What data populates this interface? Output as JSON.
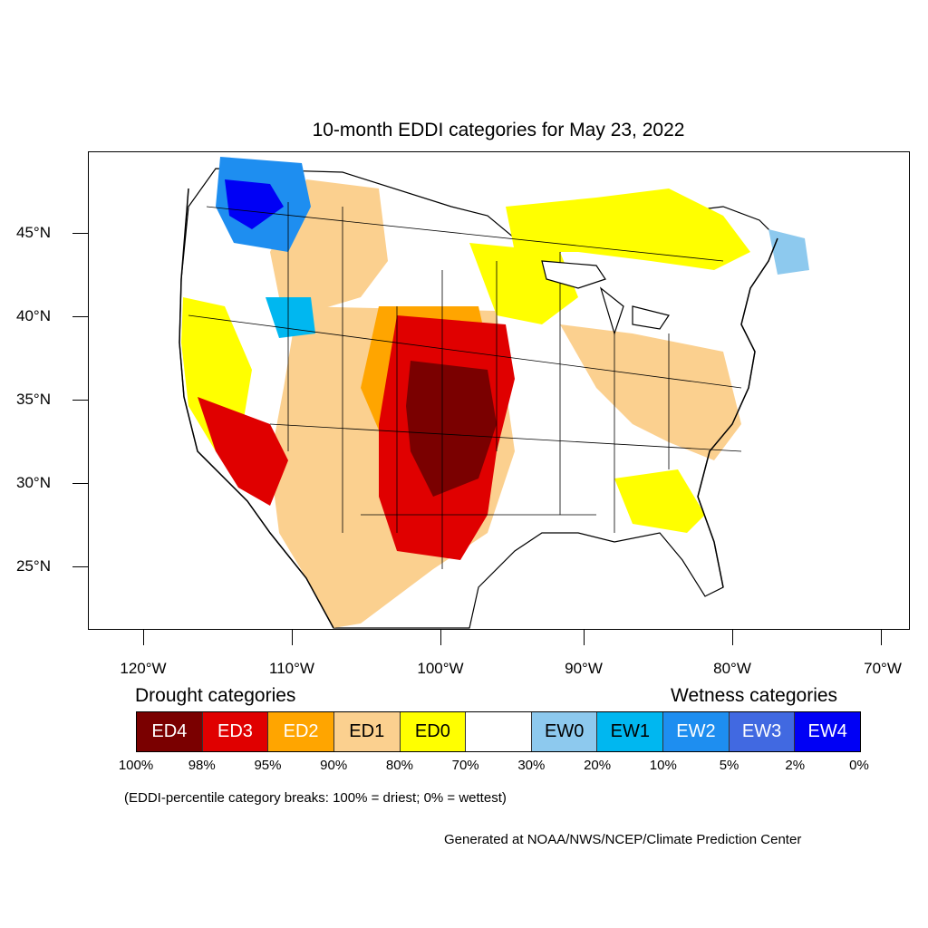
{
  "title": "10-month EDDI categories for May 23, 2022",
  "map": {
    "lat_labels": [
      "45°N",
      "40°N",
      "35°N",
      "30°N",
      "25°N"
    ],
    "lon_labels": [
      "120°W",
      "110°W",
      "100°W",
      "90°W",
      "80°W",
      "70°W"
    ]
  },
  "legend": {
    "drought_title": "Drought categories",
    "wetness_title": "Wetness categories",
    "boxes": [
      {
        "label": "ED4",
        "color": "#7a0000",
        "text_color": "#ffffff"
      },
      {
        "label": "ED3",
        "color": "#e00000",
        "text_color": "#ffffff"
      },
      {
        "label": "ED2",
        "color": "#ffa500",
        "text_color": "#ffffff"
      },
      {
        "label": "ED1",
        "color": "#fbd08f",
        "text_color": "#000000"
      },
      {
        "label": "ED0",
        "color": "#ffff00",
        "text_color": "#000000"
      },
      {
        "label": "",
        "color": "#ffffff",
        "text_color": "#000000"
      },
      {
        "label": "EW0",
        "color": "#8dc9ee",
        "text_color": "#000000"
      },
      {
        "label": "EW1",
        "color": "#00b7f0",
        "text_color": "#000000"
      },
      {
        "label": "EW2",
        "color": "#1e8ef0",
        "text_color": "#ffffff"
      },
      {
        "label": "EW3",
        "color": "#4169e1",
        "text_color": "#ffffff"
      },
      {
        "label": "EW4",
        "color": "#0000f5",
        "text_color": "#ffffff"
      }
    ],
    "percent_labels": [
      "100%",
      "98%",
      "95%",
      "90%",
      "80%",
      "70%",
      "30%",
      "20%",
      "10%",
      "5%",
      "2%",
      "0%"
    ]
  },
  "note": "(EDDI-percentile category breaks: 100% = driest; 0% = wettest)",
  "credit": "Generated at NOAA/NWS/NCEP/Climate Prediction Center"
}
